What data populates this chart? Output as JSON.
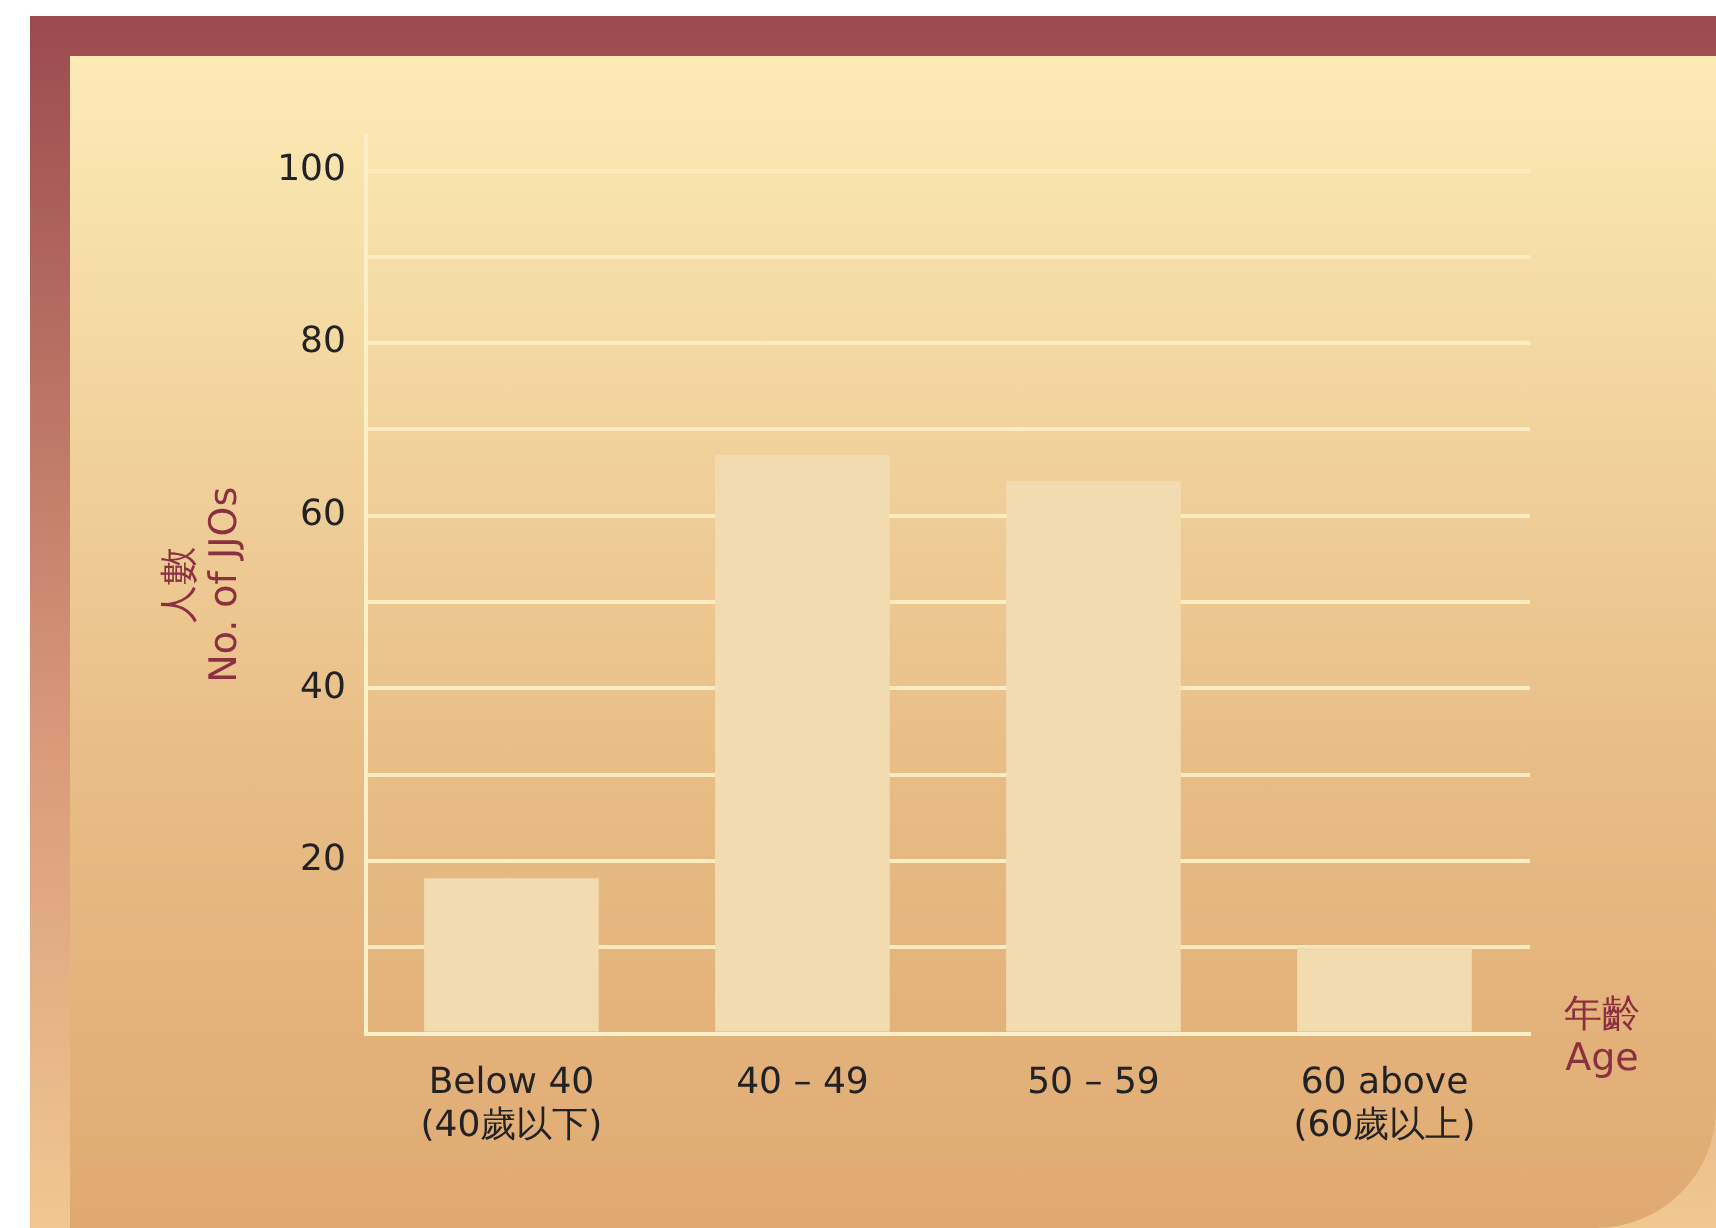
{
  "chart_data": {
    "type": "bar",
    "categories": [
      "Below 40\n(40歲以下)",
      "40 – 49",
      "50 – 59",
      "60 above\n(60歲以上)"
    ],
    "values": [
      18,
      67,
      64,
      10
    ],
    "color": "#f3dbb0",
    "ylabel": "人數\nNo. of JJOs",
    "xlabel": "年齡\nAge",
    "ylim": [
      0,
      104
    ],
    "yticks": [
      {
        "value": 0,
        "label": null
      },
      {
        "value": 10,
        "label": null
      },
      20,
      {
        "value": 30,
        "label": null
      },
      40,
      {
        "value": 50,
        "label": null
      },
      60,
      {
        "value": 70,
        "label": null
      },
      80,
      {
        "value": 90,
        "label": null
      },
      100
    ],
    "grid": "y"
  }
}
